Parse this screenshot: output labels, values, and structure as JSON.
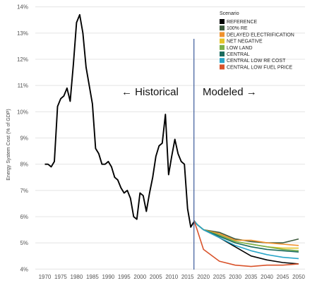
{
  "chart_data": {
    "type": "line",
    "ylabel": "Energy System Cost (% of GDP)",
    "xlabel": "",
    "xlim": [
      1967,
      2052
    ],
    "ylim": [
      3.9,
      14.1
    ],
    "x_ticks": [
      1970,
      1975,
      1980,
      1985,
      1990,
      1995,
      2000,
      2005,
      2010,
      2015,
      2020,
      2025,
      2030,
      2035,
      2040,
      2045,
      2050
    ],
    "y_ticks": [
      4,
      5,
      6,
      7,
      8,
      9,
      10,
      11,
      12,
      13,
      14
    ],
    "y_tick_labels": [
      "4%",
      "5%",
      "6%",
      "7%",
      "8%",
      "9%",
      "10%",
      "11%",
      "12%",
      "13%",
      "14%"
    ],
    "grid": true,
    "divider_year": 2017,
    "annotations": {
      "historical": "← Historical",
      "modeled": "Modeled →"
    },
    "legend": {
      "title": "Scenario",
      "placement": "top-right"
    },
    "historical": {
      "color": "#000000",
      "x": [
        1970,
        1971,
        1972,
        1973,
        1974,
        1975,
        1976,
        1977,
        1978,
        1979,
        1980,
        1981,
        1982,
        1983,
        1984,
        1985,
        1986,
        1987,
        1988,
        1989,
        1990,
        1991,
        1992,
        1993,
        1994,
        1995,
        1996,
        1997,
        1998,
        1999,
        2000,
        2001,
        2002,
        2003,
        2004,
        2005,
        2006,
        2007,
        2008,
        2009,
        2010,
        2011,
        2012,
        2013,
        2014,
        2015,
        2016,
        2017
      ],
      "y": [
        8.0,
        8.0,
        7.9,
        8.1,
        10.2,
        10.5,
        10.6,
        10.9,
        10.4,
        11.8,
        13.4,
        13.7,
        13.0,
        11.7,
        11.0,
        10.3,
        8.6,
        8.4,
        8.0,
        8.0,
        8.1,
        7.9,
        7.5,
        7.4,
        7.1,
        6.9,
        7.0,
        6.7,
        6.0,
        5.9,
        6.9,
        6.8,
        6.2,
        6.9,
        7.5,
        8.3,
        8.7,
        8.8,
        9.9,
        7.6,
        8.3,
        8.95,
        8.4,
        8.1,
        8.0,
        6.3,
        5.6,
        5.8
      ]
    },
    "x": [
      2017,
      2018,
      2020,
      2025,
      2030,
      2035,
      2040,
      2045,
      2050
    ],
    "series": [
      {
        "name": "REFERENCE",
        "color": "#000000",
        "values": [
          5.85,
          5.7,
          5.5,
          5.2,
          4.85,
          4.5,
          4.35,
          4.25,
          4.2
        ]
      },
      {
        "name": "100% RE",
        "color": "#3d5a3d",
        "values": [
          5.85,
          5.7,
          5.5,
          5.4,
          5.15,
          5.05,
          5.0,
          5.0,
          5.15
        ]
      },
      {
        "name": "DELAYED ELECTRIFICATION",
        "color": "#f0922e",
        "values": [
          5.85,
          5.7,
          5.5,
          5.35,
          5.1,
          5.1,
          5.0,
          4.95,
          4.9
        ]
      },
      {
        "name": "NET NEGATIVE",
        "color": "#e5c428",
        "values": [
          5.85,
          5.7,
          5.5,
          5.3,
          5.05,
          4.95,
          4.85,
          4.8,
          4.8
        ]
      },
      {
        "name": "LOW LAND",
        "color": "#7bb04a",
        "values": [
          5.85,
          5.7,
          5.5,
          5.3,
          5.05,
          4.95,
          4.85,
          4.75,
          4.7
        ]
      },
      {
        "name": "CENTRAL",
        "color": "#1b6b5e",
        "values": [
          5.85,
          5.7,
          5.5,
          5.25,
          5.0,
          4.85,
          4.75,
          4.7,
          4.65
        ]
      },
      {
        "name": "CENTRAL LOW RE COST",
        "color": "#2aa6c9",
        "values": [
          5.85,
          5.7,
          5.5,
          5.2,
          4.9,
          4.7,
          4.55,
          4.45,
          4.4
        ]
      },
      {
        "name": "CENTRAL LOW FUEL PRICE",
        "color": "#d9532b",
        "values": [
          5.85,
          5.5,
          4.75,
          4.3,
          4.15,
          4.1,
          4.15,
          4.15,
          4.2
        ]
      }
    ]
  }
}
